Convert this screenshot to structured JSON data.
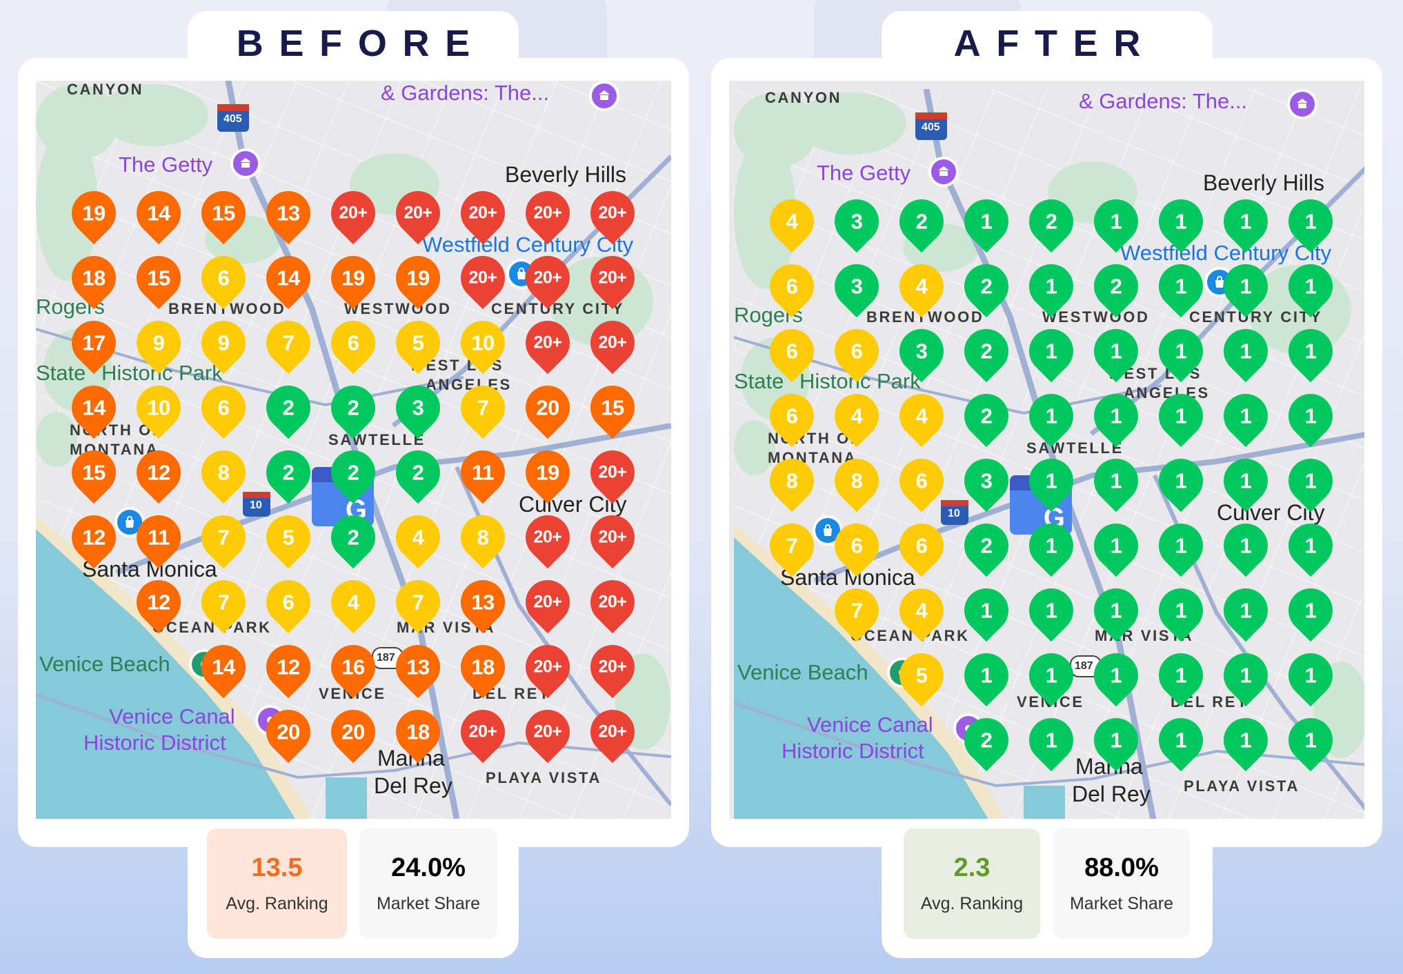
{
  "colors": {
    "rank_1_3": "#00c75e",
    "rank_4_10": "#ffcb05",
    "rank_11_20": "#ff6a00",
    "rank_20_plus": "#ea4335",
    "title": "#161b4a",
    "before_accent": "#f46a1f",
    "after_accent": "#5f9a2b"
  },
  "map_labels": {
    "canyon": "CANYON",
    "gardens": "& Gardens: The...",
    "getty": "The Getty",
    "rogers_1": "Rogers",
    "rogers_2": "State",
    "rogers_3": "Historic Park",
    "brentwood": "BRENTWOOD",
    "westwood": "WESTWOOD",
    "west_la_1": "WEST LOS",
    "west_la_2": "ANGELES",
    "north_montana_1": "NORTH OF",
    "north_montana_2": "MONTANA",
    "sawtelle": "SAWTELLE",
    "century_city": "CENTURY CITY",
    "beverly_hills": "Beverly Hills",
    "westfield": "Westfield Century City",
    "culver_city": "Culver City",
    "santa_monica": "Santa Monica",
    "ocean_park": "OCEAN PARK",
    "mar_vista": "MAR VISTA",
    "venice_beach": "Venice Beach",
    "venice": "VENICE",
    "venice_canal_1": "Venice Canal",
    "venice_canal_2": "Historic District",
    "del_rey": "DEL REY",
    "marina_1": "Marina",
    "marina_2": "Del Rey",
    "playa_vista": "PLAYA VISTA",
    "hwy_405": "405",
    "hwy_10": "10",
    "hwy_187": "187",
    "business_marker": "G"
  },
  "before": {
    "title": "BEFORE",
    "avg_ranking": "13.5",
    "avg_ranking_label": "Avg. Ranking",
    "market_share": "24.0%",
    "market_share_label": "Market Share",
    "grid": [
      [
        "19",
        "14",
        "15",
        "13",
        "20+",
        "20+",
        "20+",
        "20+",
        "20+"
      ],
      [
        "18",
        "15",
        "6",
        "14",
        "19",
        "19",
        "20+",
        "20+",
        "20+"
      ],
      [
        "17",
        "9",
        "9",
        "7",
        "6",
        "5",
        "10",
        "20+",
        "20+"
      ],
      [
        "14",
        "10",
        "6",
        "2",
        "2",
        "3",
        "7",
        "20",
        "15"
      ],
      [
        "15",
        "12",
        "8",
        "2",
        "2",
        "2",
        "11",
        "19",
        "20+"
      ],
      [
        "12",
        "11",
        "7",
        "5",
        "2",
        "4",
        "8",
        "20+",
        "20+"
      ],
      [
        null,
        "12",
        "7",
        "6",
        "4",
        "7",
        "13",
        "20+",
        "20+"
      ],
      [
        null,
        null,
        "14",
        "12",
        "16",
        "13",
        "18",
        "20+",
        "20+"
      ],
      [
        null,
        null,
        null,
        "20",
        "20",
        "18",
        "20+",
        "20+",
        "20+"
      ]
    ]
  },
  "after": {
    "title": "AFTER",
    "avg_ranking": "2.3",
    "avg_ranking_label": "Avg. Ranking",
    "market_share": "88.0%",
    "market_share_label": "Market Share",
    "grid": [
      [
        "4",
        "3",
        "2",
        "1",
        "2",
        "1",
        "1",
        "1",
        "1"
      ],
      [
        "6",
        "3",
        "4",
        "2",
        "1",
        "2",
        "1",
        "1",
        "1"
      ],
      [
        "6",
        "6",
        "3",
        "2",
        "1",
        "1",
        "1",
        "1",
        "1"
      ],
      [
        "6",
        "4",
        "4",
        "2",
        "1",
        "1",
        "1",
        "1",
        "1"
      ],
      [
        "8",
        "8",
        "6",
        "3",
        "1",
        "1",
        "1",
        "1",
        "1"
      ],
      [
        "7",
        "6",
        "6",
        "2",
        "1",
        "1",
        "1",
        "1",
        "1"
      ],
      [
        null,
        "7",
        "4",
        "1",
        "1",
        "1",
        "1",
        "1",
        "1"
      ],
      [
        null,
        null,
        "5",
        "1",
        "1",
        "1",
        "1",
        "1",
        "1"
      ],
      [
        null,
        null,
        null,
        "2",
        "1",
        "1",
        "1",
        "1",
        "1"
      ]
    ]
  }
}
